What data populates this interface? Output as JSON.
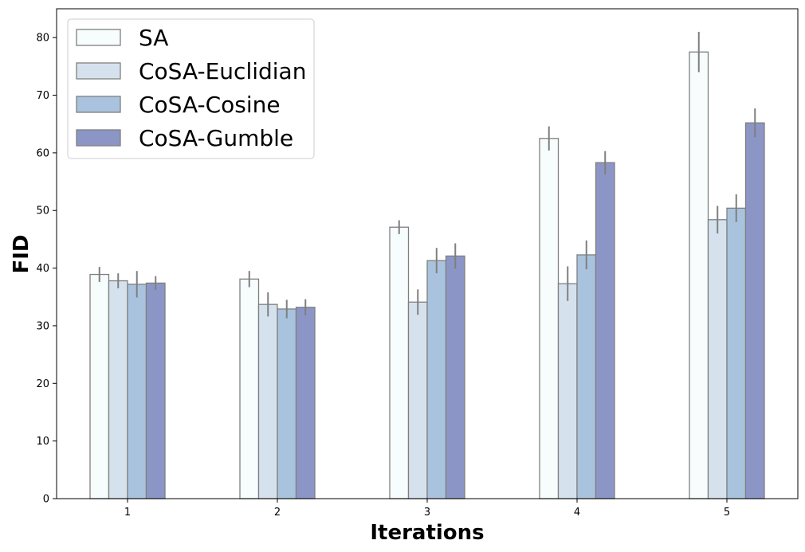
{
  "chart_data": {
    "type": "bar",
    "title": "",
    "xlabel": "Iterations",
    "ylabel": "FID",
    "categories": [
      "1",
      "2",
      "3",
      "4",
      "5"
    ],
    "ylim": [
      0,
      85
    ],
    "yticks": [
      0,
      10,
      20,
      30,
      40,
      50,
      60,
      70,
      80
    ],
    "grid": false,
    "legend_position": "top-left",
    "series": [
      {
        "name": "SA",
        "color": "#f7fcfd",
        "values": [
          38.9,
          38.1,
          47.1,
          62.5,
          77.5
        ],
        "errors": [
          1.3,
          1.4,
          1.2,
          2.1,
          3.5
        ]
      },
      {
        "name": "CoSA-Euclidian",
        "color": "#d5e2ee",
        "values": [
          37.8,
          33.7,
          34.1,
          37.3,
          48.4
        ],
        "errors": [
          1.3,
          2.1,
          2.2,
          3.0,
          2.4
        ]
      },
      {
        "name": "CoSA-Cosine",
        "color": "#a9c3de",
        "values": [
          37.2,
          32.9,
          41.3,
          42.3,
          50.4
        ],
        "errors": [
          2.3,
          1.6,
          2.2,
          2.5,
          2.4
        ]
      },
      {
        "name": "CoSA-Gumble",
        "color": "#8c96c6",
        "values": [
          37.4,
          33.2,
          42.1,
          58.3,
          65.2
        ],
        "errors": [
          1.2,
          1.4,
          2.2,
          2.0,
          2.5
        ]
      }
    ]
  }
}
